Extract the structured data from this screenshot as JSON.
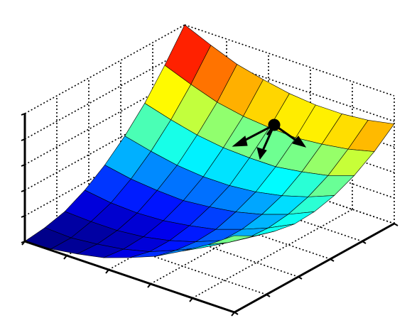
{
  "chart_data": {
    "type": "surface",
    "colormap": "jet",
    "grid": true,
    "x": [
      0,
      0.125,
      0.25,
      0.375,
      0.5,
      0.625,
      0.75,
      0.875,
      1
    ],
    "y": [
      0,
      0.125,
      0.25,
      0.375,
      0.5,
      0.625,
      0.75,
      0.875,
      1
    ],
    "z": [
      [
        0,
        0.01,
        0.04,
        0.08,
        0.15,
        0.23,
        0.34,
        0.46,
        0.6
      ],
      [
        0.02,
        0.01,
        0.03,
        0.06,
        0.11,
        0.19,
        0.28,
        0.39,
        0.51
      ],
      [
        0.06,
        0.05,
        0.05,
        0.07,
        0.11,
        0.17,
        0.25,
        0.34,
        0.46
      ],
      [
        0.14,
        0.11,
        0.1,
        0.11,
        0.14,
        0.18,
        0.25,
        0.33,
        0.43
      ],
      [
        0.25,
        0.21,
        0.19,
        0.18,
        0.2,
        0.23,
        0.28,
        0.35,
        0.44
      ],
      [
        0.39,
        0.34,
        0.3,
        0.28,
        0.28,
        0.3,
        0.34,
        0.4,
        0.48
      ],
      [
        0.56,
        0.5,
        0.45,
        0.42,
        0.41,
        0.41,
        0.44,
        0.48,
        0.55
      ],
      [
        0.77,
        0.69,
        0.62,
        0.58,
        0.56,
        0.55,
        0.57,
        0.6,
        0.65
      ],
      [
        1,
        0.91,
        0.83,
        0.78,
        0.74,
        0.72,
        0.72,
        0.74,
        0.78
      ]
    ],
    "xlim": [
      0,
      1
    ],
    "ylim": [
      0,
      1
    ],
    "zlim": [
      0,
      1
    ],
    "xticks": [
      0,
      0.2,
      0.4,
      0.6,
      0.8,
      1
    ],
    "yticks": [
      0,
      0.2,
      0.4,
      0.6,
      0.8,
      1
    ],
    "zticks": [
      0,
      0.2,
      0.4,
      0.6,
      0.8,
      1
    ]
  }
}
